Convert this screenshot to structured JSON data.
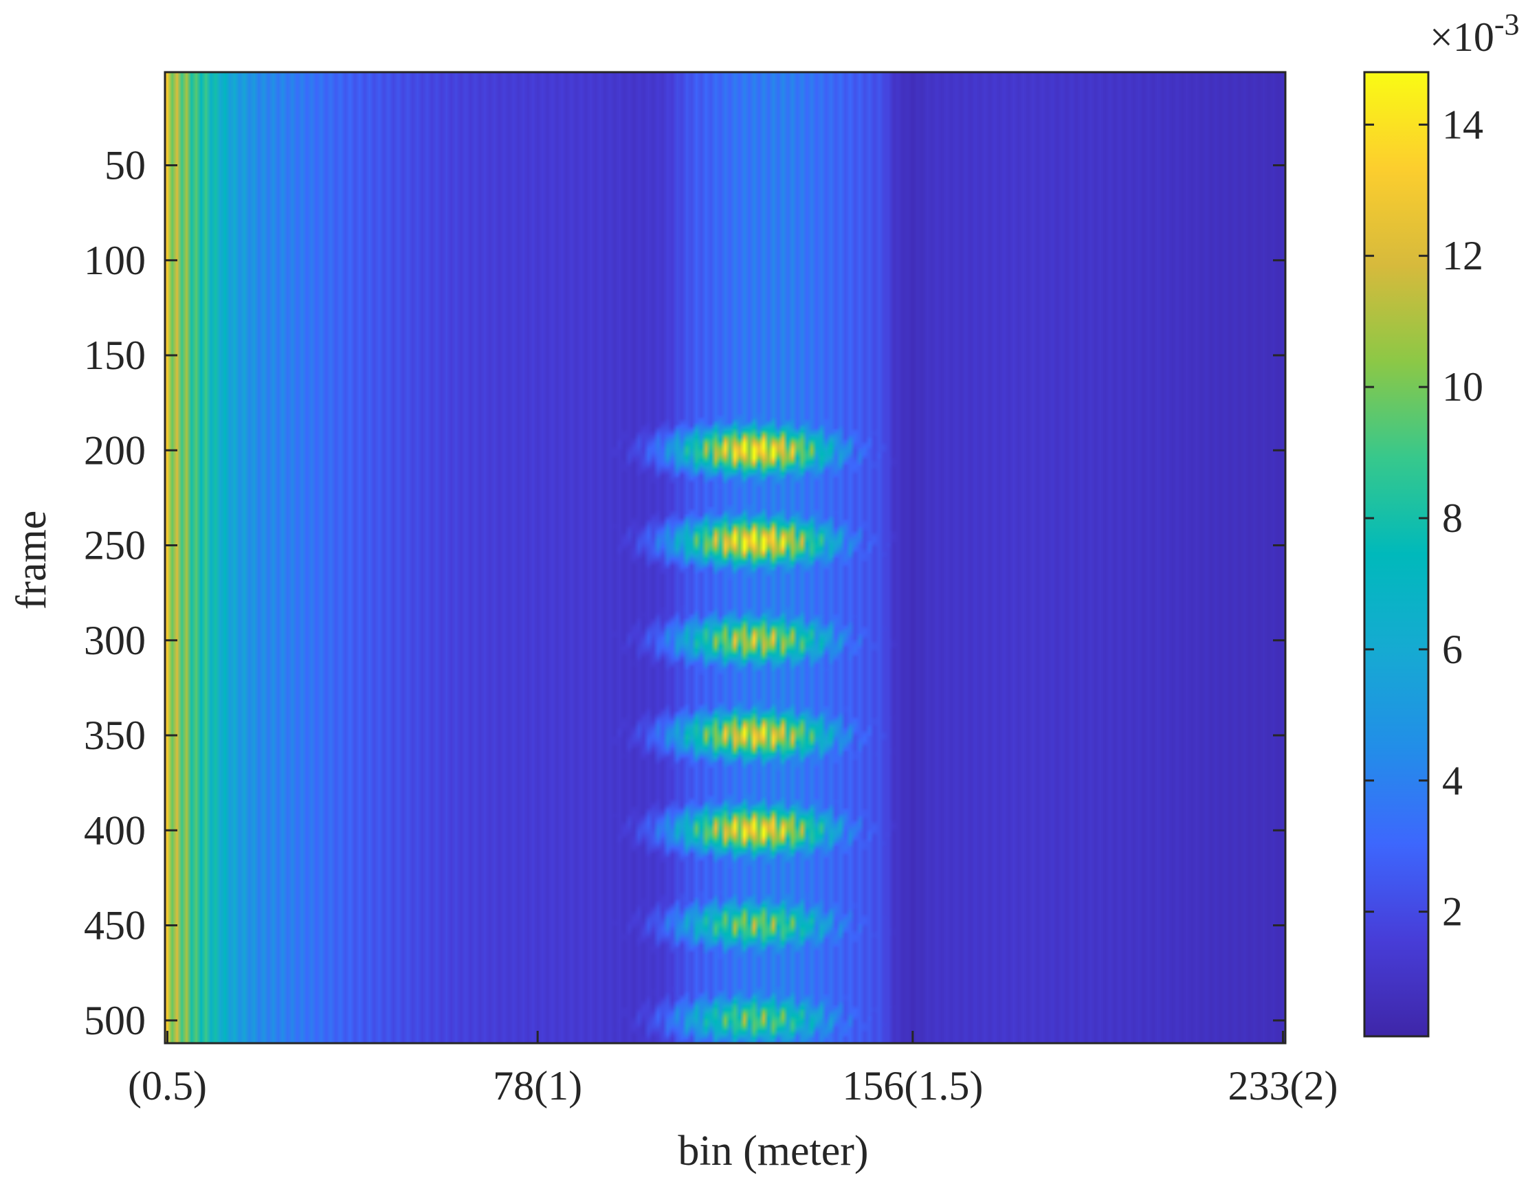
{
  "chart_data": {
    "type": "heatmap",
    "title": "",
    "xlabel": "bin (meter)",
    "ylabel": "frame",
    "x_ticks": [
      {
        "value": 1,
        "label": "(0.5)"
      },
      {
        "value": 78,
        "label": "78(1)"
      },
      {
        "value": 156,
        "label": "156(1.5)"
      },
      {
        "value": 233,
        "label": "233(2)"
      }
    ],
    "y_ticks": [
      {
        "value": 50,
        "label": "50"
      },
      {
        "value": 100,
        "label": "100"
      },
      {
        "value": 150,
        "label": "150"
      },
      {
        "value": 200,
        "label": "200"
      },
      {
        "value": 250,
        "label": "250"
      },
      {
        "value": 300,
        "label": "300"
      },
      {
        "value": 350,
        "label": "350"
      },
      {
        "value": 400,
        "label": "400"
      },
      {
        "value": 450,
        "label": "450"
      },
      {
        "value": 500,
        "label": "500"
      }
    ],
    "xlim": [
      0.5,
      233.5
    ],
    "ylim": [
      1,
      512
    ],
    "y_direction": "reverse",
    "colormap": "parula",
    "colorbar": {
      "range": [
        0.0001,
        0.0148
      ],
      "ticks": [
        {
          "value": 0.002,
          "label": "2"
        },
        {
          "value": 0.004,
          "label": "4"
        },
        {
          "value": 0.006,
          "label": "6"
        },
        {
          "value": 0.008,
          "label": "8"
        },
        {
          "value": 0.01,
          "label": "10"
        },
        {
          "value": 0.012,
          "label": "12"
        },
        {
          "value": 0.014,
          "label": "14"
        }
      ],
      "multiplier_base": "×10",
      "multiplier_exponent": "-3"
    },
    "profile_bins": [
      1,
      3,
      5,
      7,
      9,
      11,
      13,
      15,
      20,
      30,
      40,
      50,
      60,
      70,
      80,
      90,
      98,
      104,
      110,
      120,
      130,
      140,
      150,
      152,
      156,
      160,
      175,
      200,
      215,
      225,
      233
    ],
    "profile_values": [
      0.013,
      0.012,
      0.011,
      0.0095,
      0.009,
      0.008,
      0.0072,
      0.0062,
      0.005,
      0.004,
      0.003,
      0.0024,
      0.002,
      0.0017,
      0.0016,
      0.0015,
      0.0013,
      0.0015,
      0.0028,
      0.004,
      0.0044,
      0.0034,
      0.0024,
      0.0013,
      0.0008,
      0.0012,
      0.0014,
      0.0012,
      0.001,
      0.0009,
      0.0008
    ],
    "blob_centers_frame": [
      200,
      248,
      300,
      350,
      400,
      450,
      500
    ],
    "blob_peaks": [
      0.0135,
      0.0135,
      0.011,
      0.0125,
      0.013,
      0.0095,
      0.009
    ],
    "target_bin_center": 123
  }
}
